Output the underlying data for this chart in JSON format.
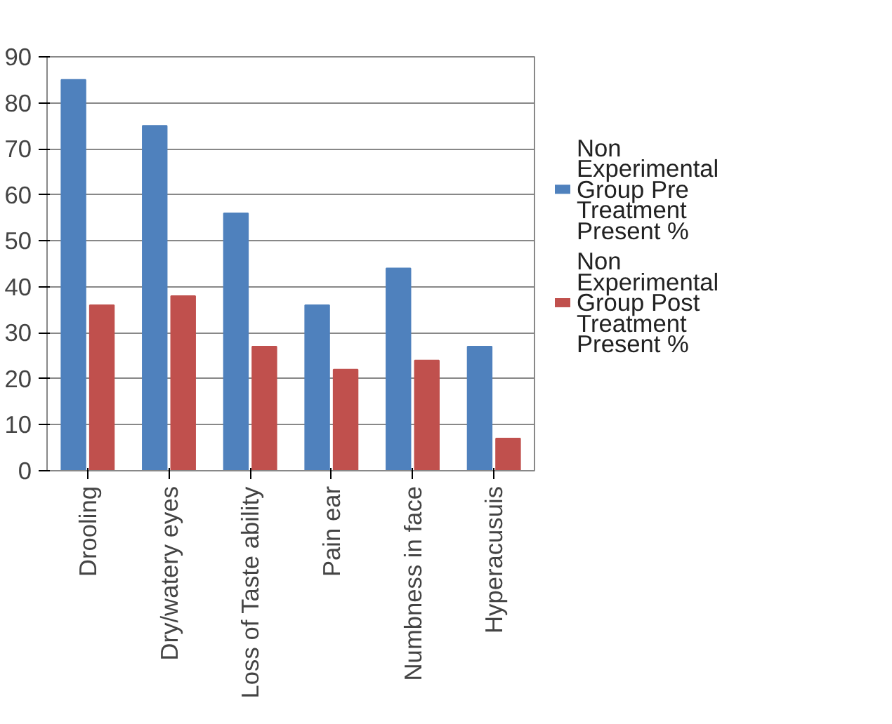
{
  "chart_data": {
    "type": "bar",
    "categories": [
      "Drooling",
      "Dry/watery eyes",
      "Loss of Taste ability",
      "Pain ear",
      "Numbness in face",
      "Hyperacusuis"
    ],
    "series": [
      {
        "name": "Non Experimental Group  Pre Treatment Present %",
        "color": "#4f81bd",
        "values": [
          85,
          75,
          56,
          36,
          44,
          27
        ]
      },
      {
        "name": "Non Experimental Group  Post Treatment Present %",
        "color": "#c0504d",
        "values": [
          36,
          38,
          27,
          22,
          24,
          7
        ]
      }
    ],
    "ylim": [
      0,
      90
    ],
    "yticks": [
      0,
      10,
      20,
      30,
      40,
      50,
      60,
      70,
      80,
      90
    ],
    "grid": "y",
    "legend": "right"
  }
}
